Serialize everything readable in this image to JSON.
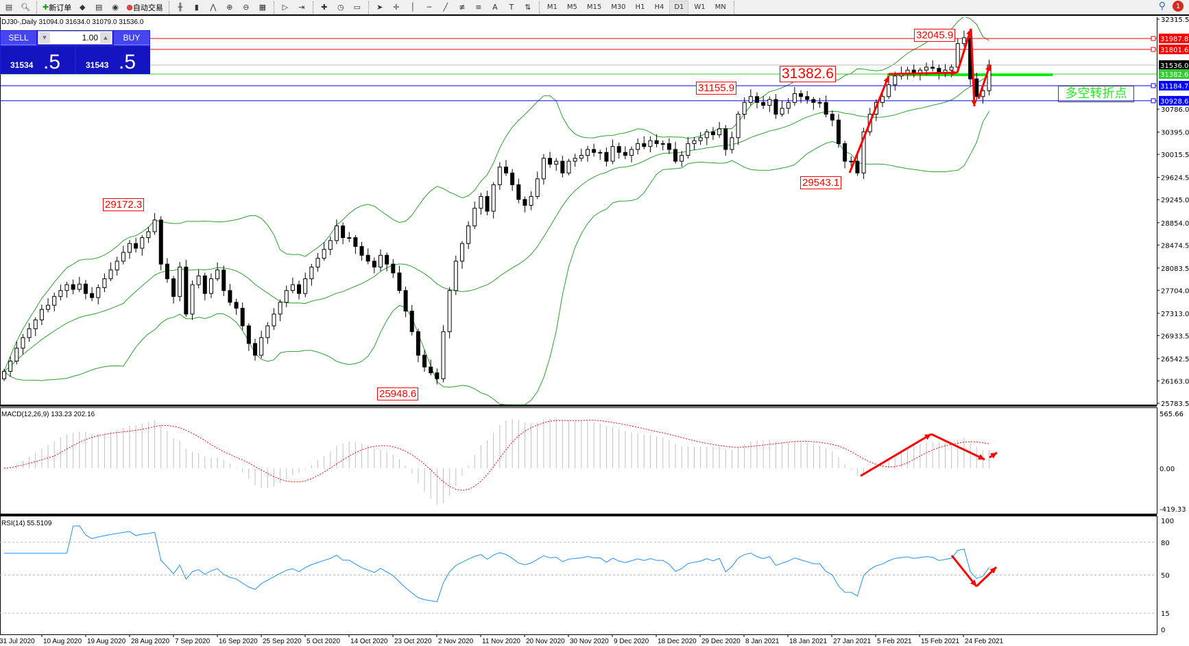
{
  "toolbar": {
    "new_order": "新订单",
    "auto_trading": "自动交易",
    "timeframes": [
      "M1",
      "M5",
      "M15",
      "M30",
      "H1",
      "H4",
      "D1",
      "W1",
      "MN"
    ],
    "active_timeframe": "D1",
    "notifications": "1",
    "icons": [
      "new-order-icon",
      "gold-icon",
      "server-icon",
      "signal-icon",
      "auto-trading-icon",
      "bar-chart-icon",
      "candle-chart-icon",
      "line-chart-icon",
      "zoom-in-icon",
      "zoom-out-icon",
      "tile-icon",
      "autoscroll-icon",
      "shift-icon",
      "indicators-icon",
      "period-icon",
      "template-icon",
      "cursor-icon",
      "crosshair-icon",
      "vertical-line-icon",
      "horizontal-line-icon",
      "trendline-icon",
      "fibo-icon",
      "fibo-fan-icon",
      "text-icon",
      "label-icon",
      "arrows-icon"
    ]
  },
  "chart_title": "DJ30-,Daily  31094.0 31634.0 31079.0 31536.0",
  "trade_panel": {
    "sell": "SELL",
    "buy": "BUY",
    "lot": "1.00",
    "sell_small": "31534",
    "sell_big": ".5",
    "buy_small": "31543",
    "buy_big": ".5"
  },
  "chart_data": {
    "type": "candlestick",
    "symbol": "DJ30-",
    "timeframe": "Daily",
    "closes": [
      26326,
      26500,
      26720,
      26900,
      27050,
      27200,
      27380,
      27450,
      27600,
      27700,
      27800,
      27720,
      27810,
      27650,
      27580,
      27750,
      27900,
      28050,
      28200,
      28350,
      28500,
      28420,
      28600,
      28700,
      28900,
      28150,
      27900,
      27600,
      28100,
      27300,
      27800,
      27950,
      27650,
      27900,
      28050,
      27700,
      27500,
      27400,
      27100,
      26800,
      26600,
      26900,
      27100,
      27300,
      27500,
      27700,
      27800,
      27650,
      27900,
      28100,
      28250,
      28400,
      28550,
      28800,
      28600,
      28600,
      28450,
      28300,
      28200,
      28100,
      28300,
      28150,
      28000,
      27700,
      27350,
      27000,
      26600,
      26400,
      26300,
      26200,
      27000,
      27700,
      28200,
      28500,
      28800,
      29100,
      29300,
      29050,
      29500,
      29800,
      29700,
      29500,
      29250,
      29150,
      29300,
      29600,
      29950,
      29850,
      29900,
      29700,
      29900,
      29950,
      30000,
      30100,
      30050,
      30050,
      29900,
      30150,
      30050,
      30000,
      30100,
      30200,
      30150,
      30250,
      30200,
      30200,
      30100,
      29900,
      30000,
      30200,
      30250,
      30300,
      30400,
      30350,
      30450,
      30100,
      30300,
      30700,
      30900,
      31000,
      30900,
      30850,
      30950,
      30700,
      30800,
      30900,
      31050,
      31000,
      30950,
      30900,
      30900,
      30700,
      30600,
      30200,
      29900,
      29900,
      29700,
      30400,
      30700,
      30900,
      31000,
      31200,
      31350,
      31400,
      31450,
      31400,
      31450,
      31500,
      31480,
      31400,
      31450,
      31500,
      31900,
      32000,
      31300,
      31000,
      31100,
      31536
    ],
    "ylim": [
      25783.5,
      32315.5
    ],
    "price_ticks": [
      "32315.5",
      "30786.0",
      "30395.0",
      "30015.5",
      "29624.5",
      "29245.0",
      "28854.0",
      "28474.5",
      "28083.5",
      "27704.0",
      "27313.0",
      "26933.5",
      "26542.5",
      "26163.0",
      "25783.5"
    ],
    "date_labels": [
      "31 Jul 2020",
      "10 Aug 2020",
      "19 Aug 2020",
      "28 Aug 2020",
      "7 Sep 2020",
      "16 Sep 2020",
      "25 Sep 2020",
      "5 Oct 2020",
      "14 Oct 2020",
      "23 Oct 2020",
      "2 Nov 2020",
      "11 Nov 2020",
      "20 Nov 2020",
      "30 Nov 2020",
      "9 Dec 2020",
      "18 Dec 2020",
      "29 Dec 2020",
      "8 Jan 2021",
      "18 Jan 2021",
      "27 Jan 2021",
      "5 Feb 2021",
      "15 Feb 2021",
      "24 Feb 2021"
    ],
    "bollinger": {
      "period": 20,
      "deviation": 2,
      "color": "#2ca02c"
    },
    "hlines": [
      {
        "price": "31987.8",
        "color": "#ff0000"
      },
      {
        "price": "31801.6",
        "color": "#ff0000"
      },
      {
        "price": "31536.0",
        "color": "#000000",
        "line": "#c0c0c0"
      },
      {
        "price": "31382.6",
        "color": "#33cc33"
      },
      {
        "price": "31184.7",
        "color": "#0000ff"
      },
      {
        "price": "30928.6",
        "color": "#0000ff"
      }
    ],
    "annotations": [
      "32045.9",
      "31382.6",
      "31155.9",
      "29543.1",
      "29172.3",
      "25948.6"
    ],
    "turn_label": "多空转折点",
    "macd": {
      "title": "MACD(12,26,9) 133.23 202.16",
      "ylim": [
        -419.33,
        565.66
      ],
      "ticks": [
        "565.66",
        "0.00",
        "-419.33"
      ],
      "hist_color": "#c0c0c0",
      "signal_color": "#ff0000"
    },
    "rsi": {
      "title": "RSI(14) 55.5109",
      "ylim": [
        0,
        100
      ],
      "ticks": [
        "100",
        "80",
        "50",
        "15",
        "0"
      ],
      "levels": [
        80,
        50,
        15
      ],
      "color": "#1e90ff"
    }
  }
}
